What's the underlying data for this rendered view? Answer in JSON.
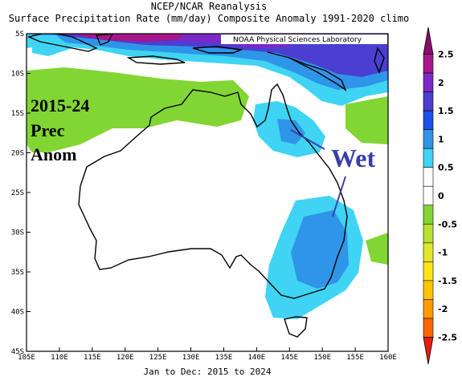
{
  "header": {
    "title_line1": "NCEP/NCAR Reanalysis",
    "title_line2": "Surface Precipitation Rate (mm/day) Composite Anomaly 1991-2020 climo",
    "credit": "NOAA Physical Sciences Laboratory"
  },
  "map": {
    "lon_ticks": [
      "105E",
      "110E",
      "115E",
      "120E",
      "125E",
      "130E",
      "135E",
      "140E",
      "145E",
      "150E",
      "155E",
      "160E"
    ],
    "lat_ticks": [
      "5S",
      "10S",
      "15S",
      "20S",
      "25S",
      "30S",
      "35S",
      "40S",
      "45S"
    ],
    "lon_range": [
      105,
      160
    ],
    "lat_range": [
      -5,
      -45
    ],
    "period": "Jan to Dec: 2015 to 2024"
  },
  "annotations": {
    "label_line1": "2015-24",
    "label_line2": "Prec",
    "label_line3": "Anom",
    "wet": "Wet",
    "wet_color": "#3a3fa8"
  },
  "colorbar": {
    "labels": [
      "2.5",
      "2",
      "1.5",
      "1",
      "0.5",
      "0",
      "-0.5",
      "-1",
      "-1.5",
      "-2",
      "-2.5"
    ],
    "colors": [
      "#8a0c6a",
      "#a8158a",
      "#7d28c8",
      "#4a3fd0",
      "#1e4fe6",
      "#2f95e8",
      "#3fd4f4",
      "#ffffff",
      "#ffffff",
      "#82d633",
      "#b8e030",
      "#e0e62a",
      "#ffe418",
      "#ffc400",
      "#ff9a00",
      "#ff6400",
      "#e81c0c"
    ]
  }
}
